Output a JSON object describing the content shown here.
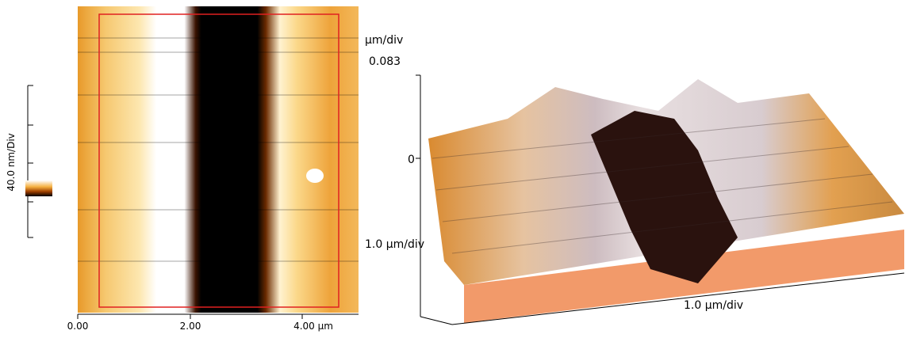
{
  "scale_bar": {
    "label": "40.0 nm/Div"
  },
  "image_2d": {
    "x_ticks": [
      "0.00",
      "2.00",
      "4.00 µm"
    ]
  },
  "image_3d": {
    "z_unit": "µm/div",
    "z_max": "0.083",
    "z_zero": "0",
    "y_scale": "1.0 µm/div",
    "x_scale": "1.0 µm/div"
  }
}
